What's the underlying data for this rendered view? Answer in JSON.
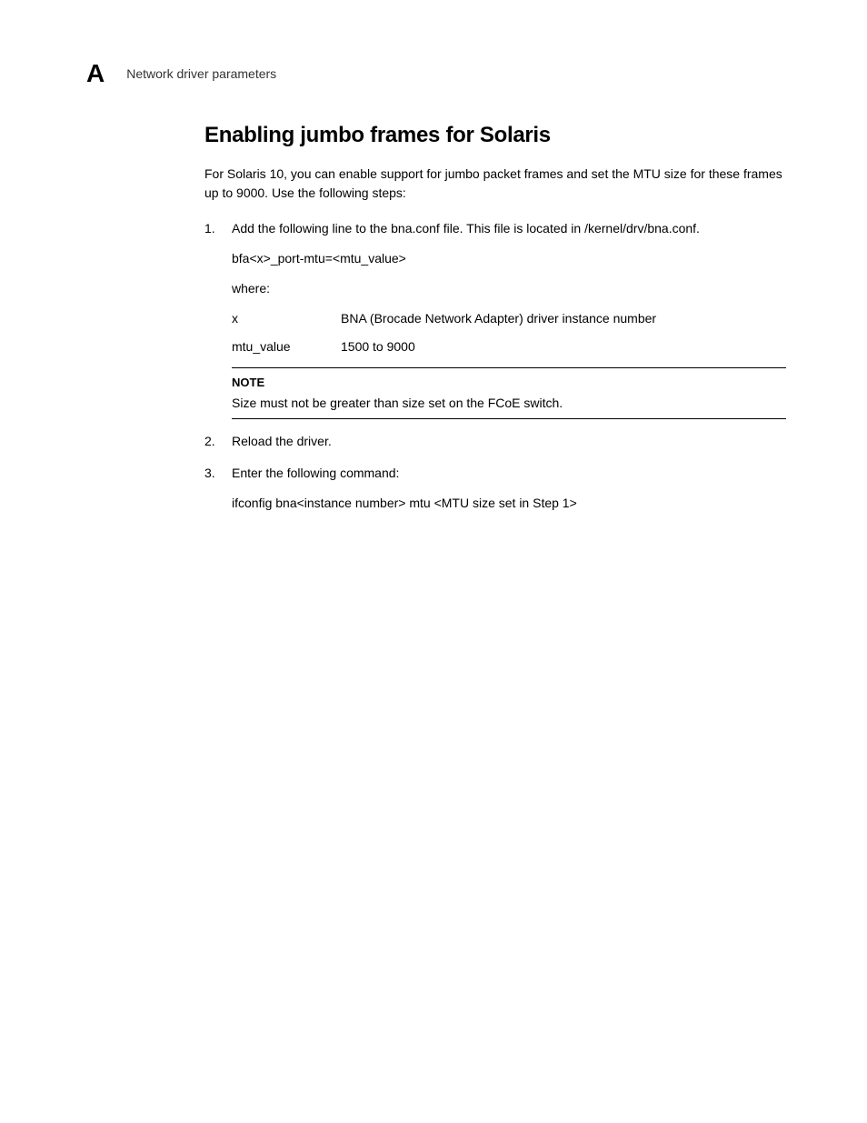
{
  "header": {
    "appendix_letter": "A",
    "running_header": "Network driver parameters"
  },
  "section": {
    "title": "Enabling jumbo frames for Solaris",
    "intro": "For Solaris 10, you can enable support for jumbo packet frames and set the MTU size for these frames up to 9000. Use the following steps:",
    "steps": [
      {
        "text": "Add the following line to the bna.conf file. This file is located in /kernel/drv/bna.conf.",
        "code_line": "bfa<x>_port-mtu=<mtu_value>",
        "where_label": "where:",
        "defs": [
          {
            "term": "x",
            "def": "BNA (Brocade Network Adapter) driver instance number"
          },
          {
            "term": "mtu_value",
            "def": "1500 to 9000"
          }
        ],
        "note": {
          "label": "NOTE",
          "text": "Size must not be greater than size set on the FCoE switch."
        }
      },
      {
        "text": "Reload the driver."
      },
      {
        "text": "Enter the following command:",
        "command": "ifconfig bna<instance number> mtu <MTU size set in Step 1>"
      }
    ]
  },
  "colors": {
    "background": "#ffffff",
    "text": "#000000",
    "header_text": "#333333",
    "rule": "#000000"
  },
  "typography": {
    "body_fontsize": 14,
    "title_fontsize": 24,
    "appendix_fontsize": 28,
    "note_label_fontsize": 13
  }
}
